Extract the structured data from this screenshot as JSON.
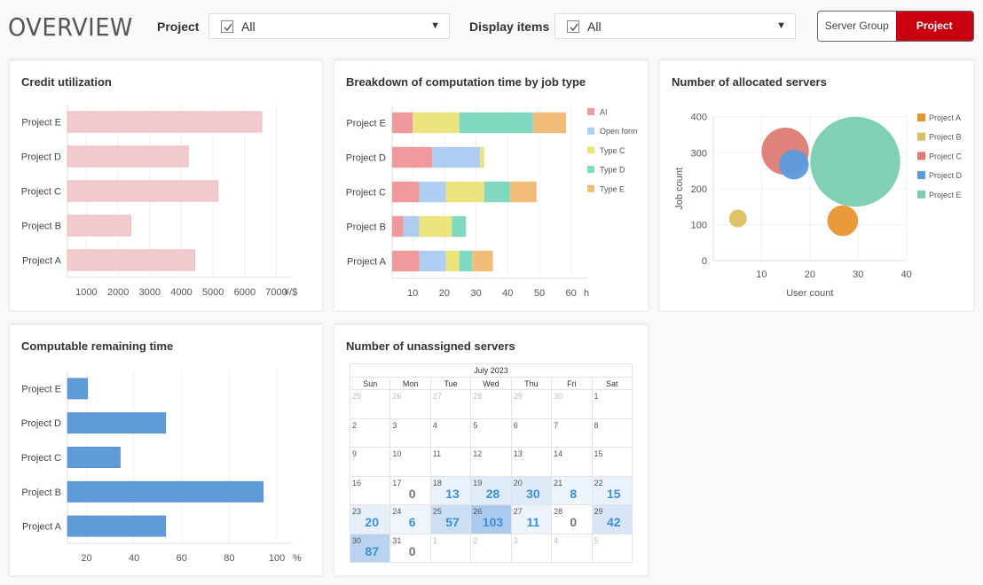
{
  "header": {
    "title": "OVERVIEW",
    "project_filter": {
      "label": "Project",
      "value": "All",
      "checked": true
    },
    "display_filter": {
      "label": "Display items",
      "value": "All",
      "checked": true
    },
    "view_toggle": {
      "options": [
        "Server Group",
        "Project"
      ],
      "selected": "Project"
    }
  },
  "colors": {
    "accent": "#c8000f",
    "credit_bar": "#f2c9cc",
    "remaining_bar": "#5f9bd8",
    "calendar_value": "#3b8fd9"
  },
  "chart_data": [
    {
      "id": "credit",
      "type": "bar",
      "orientation": "horizontal",
      "title": "Credit utilization",
      "categories": [
        "Project A",
        "Project B",
        "Project C",
        "Project D",
        "Project E"
      ],
      "values": [
        4430,
        2410,
        5160,
        4220,
        6540
      ],
      "xticks": [
        1000,
        2000,
        3000,
        4000,
        5000,
        6000,
        7000
      ],
      "xlim": [
        400,
        7400
      ],
      "unit": "¥/$",
      "grid": true
    },
    {
      "id": "breakdown",
      "type": "bar",
      "orientation": "horizontal",
      "stacked": true,
      "title": "Breakdown of computation time by job type",
      "categories": [
        "Project A",
        "Project B",
        "Project C",
        "Project D",
        "Project E"
      ],
      "series": [
        {
          "name": "AI",
          "color": "#ee9a9c",
          "values": [
            8.6,
            3.6,
            8.6,
            12.7,
            6.5
          ]
        },
        {
          "name": "Open form",
          "color": "#aecdf1",
          "values": [
            8.4,
            5.0,
            8.4,
            15.1,
            0
          ]
        },
        {
          "name": "Type C",
          "color": "#ebe47d",
          "values": [
            4.2,
            10.3,
            12.1,
            1.3,
            14.7
          ]
        },
        {
          "name": "Type D",
          "color": "#7fd8c0",
          "values": [
            4.1,
            4.4,
            8.2,
            0,
            23.3
          ]
        },
        {
          "name": "Type E",
          "color": "#f1bb78",
          "values": [
            6.5,
            0,
            8.3,
            0,
            10.4
          ]
        }
      ],
      "xticks": [
        10,
        20,
        30,
        40,
        50,
        60
      ],
      "xlim": [
        3.5,
        65
      ],
      "unit": "h",
      "legend": "right",
      "grid": true
    },
    {
      "id": "allocated",
      "type": "scatter",
      "subtype": "bubble",
      "title": "Number of allocated servers",
      "xlabel": "User count",
      "ylabel": "Job count",
      "xticks": [
        10,
        20,
        30,
        40
      ],
      "yticks": [
        0,
        100,
        200,
        300,
        400
      ],
      "xlim": [
        0,
        40
      ],
      "ylim": [
        0,
        400
      ],
      "legend": "right",
      "grid": true,
      "points": [
        {
          "name": "Project A",
          "color": "#e8952f",
          "x": 26.8,
          "y": 111,
          "size": 30
        },
        {
          "name": "Project B",
          "color": "#dcc060",
          "x": 5.1,
          "y": 117,
          "size": 10
        },
        {
          "name": "Project C",
          "color": "#dd7b72",
          "x": 14.9,
          "y": 304,
          "size": 71
        },
        {
          "name": "Project D",
          "color": "#5b9ade",
          "x": 16.7,
          "y": 267,
          "size": 28
        },
        {
          "name": "Project E",
          "color": "#79cfb0",
          "x": 29.4,
          "y": 275,
          "size": 257
        }
      ]
    },
    {
      "id": "remaining",
      "type": "bar",
      "orientation": "horizontal",
      "title": "Computable remaining time",
      "categories": [
        "Project A",
        "Project B",
        "Project C",
        "Project D",
        "Project E"
      ],
      "values": [
        53.3,
        94.3,
        34.2,
        53.3,
        20.5
      ],
      "xticks": [
        20,
        40,
        60,
        80,
        100
      ],
      "xlim": [
        12,
        107
      ],
      "unit": "%",
      "grid": true
    }
  ],
  "calendar": {
    "title": "Number of unassigned servers",
    "month_label": "July 2023",
    "weekdays": [
      "Sun",
      "Mon",
      "Tue",
      "Wed",
      "Thu",
      "Fri",
      "Sat"
    ],
    "weeks": [
      [
        {
          "d": "25",
          "o": true
        },
        {
          "d": "26",
          "o": true
        },
        {
          "d": "27",
          "o": true
        },
        {
          "d": "28",
          "o": true
        },
        {
          "d": "29",
          "o": true
        },
        {
          "d": "30",
          "o": true
        },
        {
          "d": "1"
        }
      ],
      [
        {
          "d": "2"
        },
        {
          "d": "3"
        },
        {
          "d": "4"
        },
        {
          "d": "5"
        },
        {
          "d": "6"
        },
        {
          "d": "7"
        },
        {
          "d": "8"
        }
      ],
      [
        {
          "d": "9"
        },
        {
          "d": "10"
        },
        {
          "d": "11"
        },
        {
          "d": "12"
        },
        {
          "d": "13"
        },
        {
          "d": "14"
        },
        {
          "d": "15"
        }
      ],
      [
        {
          "d": "16"
        },
        {
          "d": "17",
          "v": 0
        },
        {
          "d": "18",
          "v": 13
        },
        {
          "d": "19",
          "v": 28
        },
        {
          "d": "20",
          "v": 30
        },
        {
          "d": "21",
          "v": 8
        },
        {
          "d": "22",
          "v": 15
        }
      ],
      [
        {
          "d": "23",
          "v": 20
        },
        {
          "d": "24",
          "v": 6
        },
        {
          "d": "25",
          "v": 57
        },
        {
          "d": "26",
          "v": 103
        },
        {
          "d": "27",
          "v": 11
        },
        {
          "d": "28",
          "v": 0
        },
        {
          "d": "29",
          "v": 42
        }
      ],
      [
        {
          "d": "30",
          "v": 87
        },
        {
          "d": "31",
          "v": 0
        },
        {
          "d": "1",
          "o": true
        },
        {
          "d": "2",
          "o": true
        },
        {
          "d": "3",
          "o": true
        },
        {
          "d": "4",
          "o": true
        },
        {
          "d": "5",
          "o": true
        }
      ]
    ]
  }
}
